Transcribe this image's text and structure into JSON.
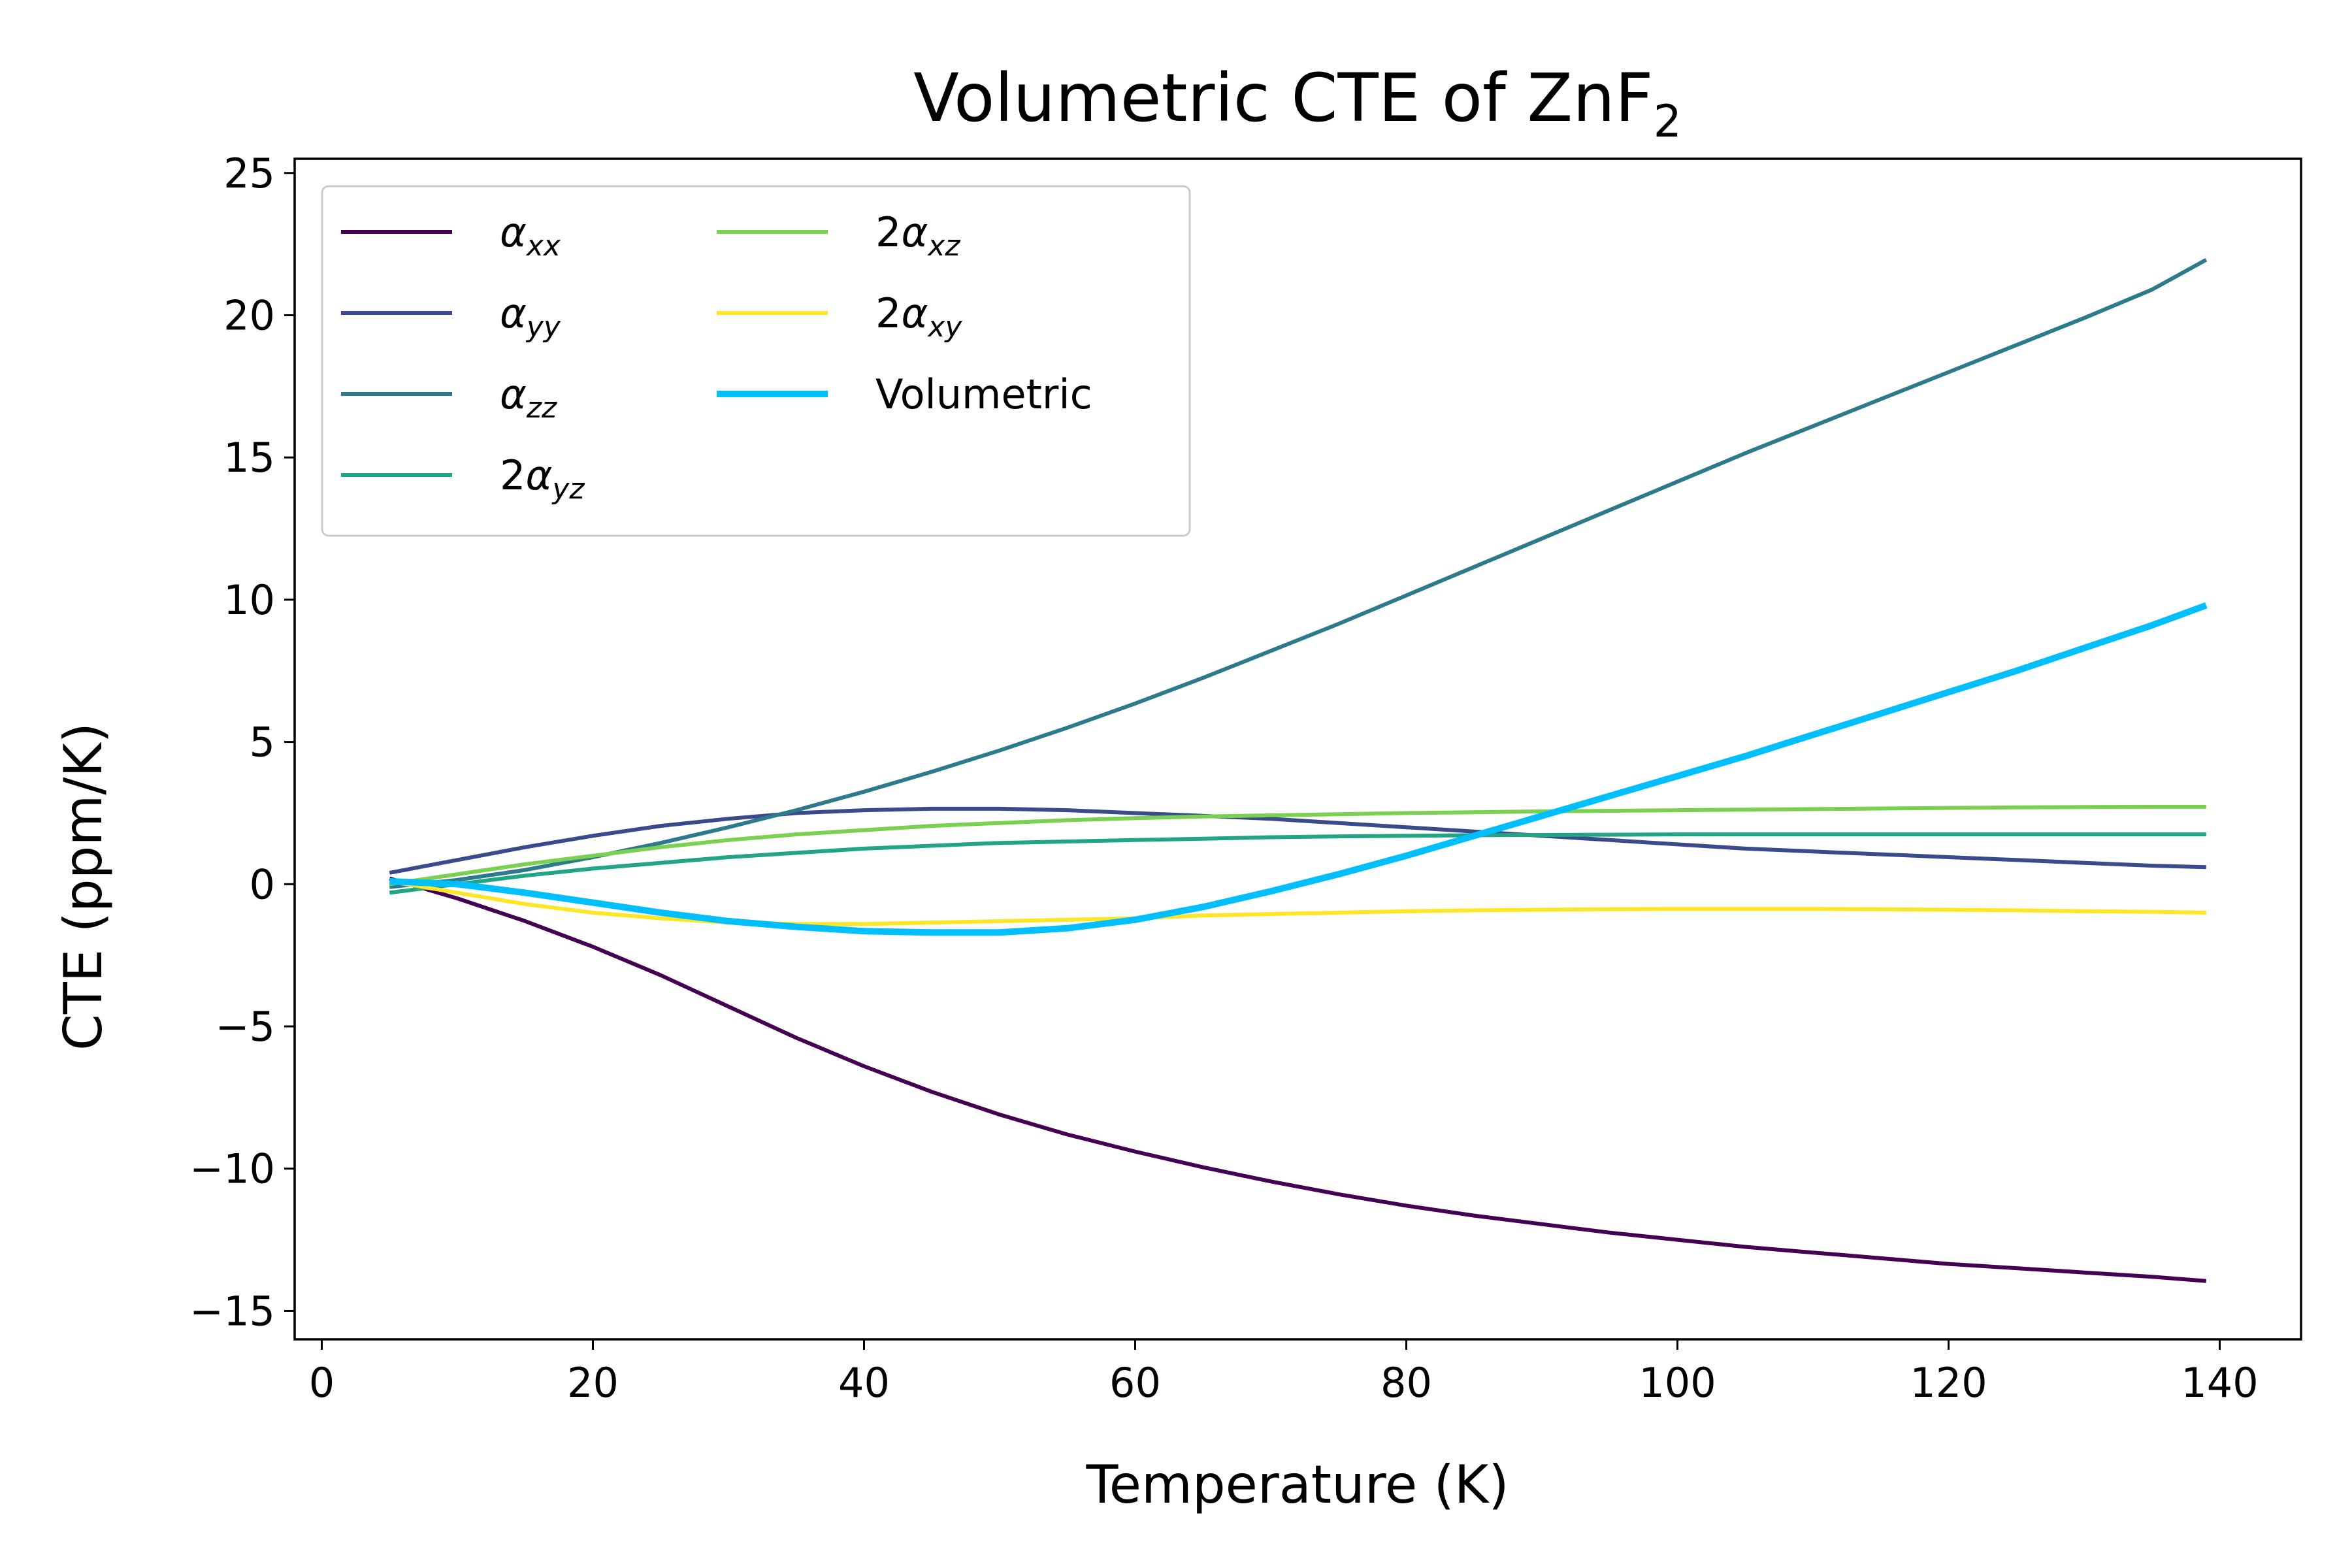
{
  "chart_data": {
    "type": "line",
    "title": "Volumetric CTE of ZnF",
    "title_subscript": "2",
    "xlabel": "Temperature (K)",
    "ylabel": "CTE (ppm/K)",
    "xlim": [
      -2,
      146
    ],
    "ylim": [
      -16,
      25.5
    ],
    "xticks": [
      0,
      20,
      40,
      60,
      80,
      100,
      120,
      140
    ],
    "yticks": [
      25,
      20,
      15,
      10,
      5,
      0,
      -5,
      -10,
      -15
    ],
    "xtick_labels": [
      "0",
      "20",
      "40",
      "60",
      "80",
      "100",
      "120",
      "140"
    ],
    "ytick_labels": [
      "25",
      "20",
      "15",
      "10",
      "5",
      "0",
      "−5",
      "−10",
      "−15"
    ],
    "grid": false,
    "legend_position": "top-left",
    "legend_columns": 2,
    "x": [
      5,
      10,
      15,
      20,
      25,
      30,
      35,
      40,
      45,
      50,
      55,
      60,
      65,
      70,
      75,
      80,
      85,
      90,
      95,
      100,
      105,
      110,
      115,
      120,
      125,
      130,
      135,
      139
    ],
    "series": [
      {
        "prefix": "",
        "symbol": "α",
        "sub": "xx",
        "color": "#440154",
        "width": 6,
        "values": [
          0.2,
          -0.5,
          -1.3,
          -2.2,
          -3.2,
          -4.3,
          -5.4,
          -6.4,
          -7.3,
          -8.1,
          -8.8,
          -9.4,
          -9.95,
          -10.45,
          -10.9,
          -11.3,
          -11.65,
          -11.95,
          -12.25,
          -12.5,
          -12.75,
          -12.95,
          -13.15,
          -13.35,
          -13.5,
          -13.65,
          -13.8,
          -13.95
        ]
      },
      {
        "prefix": "",
        "symbol": "α",
        "sub": "yy",
        "color": "#3b4a8a",
        "width": 6,
        "values": [
          0.4,
          0.85,
          1.3,
          1.7,
          2.05,
          2.3,
          2.5,
          2.6,
          2.65,
          2.65,
          2.6,
          2.5,
          2.4,
          2.3,
          2.15,
          2.0,
          1.85,
          1.7,
          1.55,
          1.4,
          1.25,
          1.15,
          1.05,
          0.95,
          0.85,
          0.75,
          0.65,
          0.6
        ]
      },
      {
        "prefix": "",
        "symbol": "α",
        "sub": "zz",
        "color": "#2c7a8c",
        "width": 6,
        "values": [
          -0.1,
          0.15,
          0.5,
          0.95,
          1.45,
          2.0,
          2.6,
          3.25,
          3.95,
          4.7,
          5.5,
          6.35,
          7.25,
          8.2,
          9.15,
          10.15,
          11.15,
          12.15,
          13.15,
          14.15,
          15.15,
          16.1,
          17.05,
          18.0,
          18.95,
          19.9,
          20.9,
          21.95
        ]
      },
      {
        "prefix": "2",
        "symbol": "α",
        "sub": "yz",
        "color": "#21a585",
        "width": 6,
        "values": [
          -0.3,
          0.0,
          0.3,
          0.55,
          0.75,
          0.95,
          1.1,
          1.25,
          1.35,
          1.45,
          1.5,
          1.55,
          1.6,
          1.65,
          1.68,
          1.7,
          1.72,
          1.73,
          1.74,
          1.75,
          1.75,
          1.75,
          1.75,
          1.75,
          1.75,
          1.75,
          1.75,
          1.75
        ]
      },
      {
        "prefix": "2",
        "symbol": "α",
        "sub": "xz",
        "color": "#7ad151",
        "width": 6,
        "values": [
          0.0,
          0.35,
          0.7,
          1.0,
          1.3,
          1.55,
          1.75,
          1.9,
          2.05,
          2.15,
          2.25,
          2.32,
          2.38,
          2.42,
          2.46,
          2.5,
          2.53,
          2.56,
          2.58,
          2.6,
          2.62,
          2.64,
          2.66,
          2.68,
          2.7,
          2.71,
          2.72,
          2.72
        ]
      },
      {
        "prefix": "2",
        "symbol": "α",
        "sub": "xy",
        "color": "#fde725",
        "width": 6,
        "values": [
          0.1,
          -0.3,
          -0.7,
          -1.0,
          -1.2,
          -1.35,
          -1.4,
          -1.4,
          -1.35,
          -1.3,
          -1.25,
          -1.2,
          -1.1,
          -1.05,
          -1.0,
          -0.95,
          -0.92,
          -0.9,
          -0.88,
          -0.87,
          -0.87,
          -0.87,
          -0.88,
          -0.9,
          -0.92,
          -0.95,
          -0.97,
          -1.0
        ]
      },
      {
        "prefix": "",
        "symbol": "",
        "sub": "",
        "label": "Volumetric",
        "color": "#00bfff",
        "width": 10,
        "values": [
          0.1,
          0.0,
          -0.3,
          -0.65,
          -1.0,
          -1.3,
          -1.5,
          -1.65,
          -1.7,
          -1.7,
          -1.55,
          -1.25,
          -0.8,
          -0.25,
          0.35,
          1.0,
          1.7,
          2.4,
          3.1,
          3.8,
          4.5,
          5.25,
          6.0,
          6.75,
          7.5,
          8.3,
          9.1,
          9.8
        ]
      }
    ]
  }
}
